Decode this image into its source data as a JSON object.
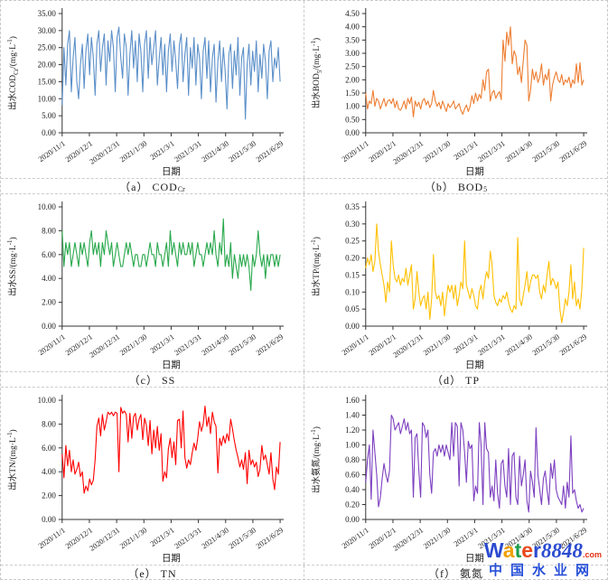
{
  "watermark": {
    "letters": [
      {
        "ch": "W",
        "color": "#2B4BD0"
      },
      {
        "ch": "a",
        "color": "#F0A000"
      },
      {
        "ch": "t",
        "color": "#1E9E4C"
      },
      {
        "ch": "e",
        "color": "#E8491D"
      },
      {
        "ch": "r",
        "color": "#2B4BD0"
      }
    ],
    "suffix": "8848",
    "suffix_color": "#2B4BD0",
    "dot_com": ".com",
    "dot_com_color": "#E53012",
    "line2": "中国水业网",
    "line2_color": "#2750D8"
  },
  "chart_data": [
    {
      "id": "a",
      "type": "line",
      "caption": {
        "pre": "（a） COD",
        "sub": "Cr"
      },
      "ylabel": {
        "pre": "出水COD",
        "sub": "Cr",
        "post": "/(mg·L",
        "sup": "-1",
        "end": ")"
      },
      "xlabel": "日期",
      "color": "#5B8FC9",
      "ymin": 0,
      "ymax": 35,
      "ystep": 5,
      "xticks": [
        "2020/11/1",
        "2020/12/1",
        "2020/12/31",
        "2021/1/30",
        "2021/3/1",
        "2021/3/31",
        "2021/4/30",
        "2021/5/30",
        "2021/6/29"
      ],
      "values": [
        8,
        25,
        14,
        26,
        30,
        12,
        22,
        28,
        15,
        10,
        20,
        26,
        13,
        24,
        29,
        17,
        28,
        22,
        11,
        26,
        30,
        18,
        25,
        29,
        14,
        27,
        21,
        30,
        25,
        12,
        28,
        31,
        22,
        16,
        29,
        25,
        11,
        23,
        30,
        19,
        27,
        15,
        29,
        24,
        12,
        26,
        30,
        16,
        28,
        20,
        25,
        30,
        14,
        22,
        28,
        17,
        26,
        12,
        24,
        29,
        18,
        27,
        21,
        13,
        26,
        29,
        15,
        23,
        28,
        11,
        25,
        19,
        28,
        14,
        26,
        22,
        10,
        24,
        28,
        16,
        27,
        12,
        22,
        26,
        9,
        21,
        27,
        15,
        25,
        18,
        7,
        23,
        26,
        13,
        24,
        17,
        28,
        11,
        22,
        25,
        4,
        20,
        26,
        14,
        24,
        18,
        27,
        12,
        23,
        16,
        26,
        21,
        10,
        24,
        27,
        15,
        22,
        19,
        25,
        15
      ]
    },
    {
      "id": "b",
      "type": "line",
      "caption": {
        "pre": "（b） BOD",
        "sub": "5"
      },
      "ylabel": {
        "pre": "出水BOD",
        "sub": "5",
        "post": "/(mg·L",
        "sup": "-1",
        "end": ")"
      },
      "xlabel": "日期",
      "color": "#ED7D31",
      "ymin": 0,
      "ymax": 4.5,
      "ystep": 0.5,
      "xticks": [
        "2020/11/1",
        "2020/12/1",
        "2020/12/31",
        "2021/1/30",
        "2021/3/1",
        "2021/3/31",
        "2021/4/30",
        "2021/5/30",
        "2021/6/29"
      ],
      "values": [
        1.5,
        0.9,
        1.2,
        1.1,
        1.6,
        1.0,
        1.3,
        1.2,
        0.9,
        1.1,
        1.3,
        1.0,
        1.2,
        1.25,
        1.1,
        1.3,
        0.95,
        1.2,
        0.9,
        0.85,
        1.0,
        1.2,
        0.9,
        1.3,
        1.1,
        1.35,
        0.6,
        1.2,
        1.0,
        1.15,
        0.9,
        1.2,
        1.3,
        1.05,
        1.2,
        0.95,
        1.1,
        1.6,
        1.2,
        1.0,
        1.15,
        0.9,
        1.2,
        1.0,
        0.8,
        1.1,
        0.95,
        1.05,
        1.2,
        0.9,
        1.0,
        1.1,
        0.85,
        0.7,
        0.9,
        1.05,
        0.8,
        1.0,
        1.4,
        1.1,
        1.5,
        1.2,
        1.45,
        1.3,
        2.0,
        1.6,
        2.3,
        2.4,
        1.2,
        1.5,
        1.6,
        1.3,
        1.45,
        1.55,
        1.25,
        3.5,
        2.7,
        3.8,
        3.3,
        4.0,
        2.6,
        3.1,
        2.9,
        2.2,
        2.5,
        1.9,
        2.7,
        3.5,
        3.3,
        1.2,
        1.6,
        2.4,
        2.0,
        2.3,
        1.9,
        2.1,
        2.6,
        1.8,
        2.2,
        2.0,
        2.4,
        1.2,
        1.8,
        2.1,
        2.3,
        2.0,
        1.9,
        2.2,
        1.8,
        2.0,
        1.9,
        2.1,
        1.7,
        2.0,
        1.85,
        2.6,
        1.9,
        2.65,
        1.8,
        2.0
      ]
    },
    {
      "id": "c",
      "type": "line",
      "caption": {
        "pre": "（c） SS",
        "sub": ""
      },
      "ylabel": {
        "pre": "出水SS",
        "sub": "",
        "post": "/(mg·L",
        "sup": "-1",
        "end": ")"
      },
      "xlabel": "日期",
      "color": "#28A84C",
      "ymin": 0,
      "ymax": 10,
      "ystep": 2,
      "xticks": [
        "2020/11/1",
        "2020/12/1",
        "2020/12/31",
        "2021/1/30",
        "2021/3/1",
        "2021/3/31",
        "2021/4/30",
        "2021/5/30",
        "2021/6/29"
      ],
      "values": [
        8,
        5,
        7,
        6,
        7,
        5,
        6,
        7,
        6,
        5,
        7,
        6,
        7,
        6,
        5,
        7,
        8,
        6,
        7,
        6,
        7,
        5,
        7,
        6,
        8,
        7,
        6,
        7,
        5,
        6,
        7,
        6,
        5,
        5,
        6,
        7,
        6,
        7,
        6,
        5,
        6,
        6,
        5,
        5,
        6,
        6,
        5,
        6,
        7,
        6,
        6,
        5,
        7,
        6,
        6,
        5,
        6,
        7,
        5,
        8,
        6,
        7,
        6,
        5,
        7,
        6,
        7,
        6,
        6,
        7,
        6,
        7,
        5,
        6,
        7,
        6,
        6,
        5,
        6,
        7,
        6,
        7,
        6,
        8,
        6,
        5,
        7,
        6,
        9,
        5,
        6,
        5,
        7,
        4,
        6,
        5,
        4,
        6,
        5,
        6,
        5,
        6,
        5,
        3,
        6,
        5,
        6,
        8,
        6,
        5,
        6,
        4,
        6,
        5,
        6,
        6,
        5,
        6,
        5,
        6
      ]
    },
    {
      "id": "d",
      "type": "line",
      "caption": {
        "pre": "（d） TP",
        "sub": ""
      },
      "ylabel": {
        "pre": "出水TP",
        "sub": "",
        "post": "/(mg·L",
        "sup": "-1",
        "end": ")"
      },
      "xlabel": "日期",
      "color": "#FFC000",
      "ymin": 0,
      "ymax": 0.35,
      "ystep": 0.05,
      "xticks": [
        "2020/11/1",
        "2020/12/1",
        "2020/12/31",
        "2021/1/30",
        "2021/3/1",
        "2021/3/31",
        "2021/4/30",
        "2021/5/30",
        "2021/6/29"
      ],
      "values": [
        0.17,
        0.2,
        0.18,
        0.21,
        0.16,
        0.19,
        0.3,
        0.22,
        0.18,
        0.15,
        0.12,
        0.07,
        0.13,
        0.1,
        0.25,
        0.18,
        0.14,
        0.13,
        0.15,
        0.12,
        0.14,
        0.13,
        0.17,
        0.12,
        0.15,
        0.18,
        0.05,
        0.08,
        0.16,
        0.1,
        0.06,
        0.08,
        0.09,
        0.05,
        0.1,
        0.02,
        0.08,
        0.21,
        0.1,
        0.08,
        0.09,
        0.06,
        0.1,
        0.03,
        0.08,
        0.12,
        0.1,
        0.12,
        0.08,
        0.12,
        0.06,
        0.09,
        0.13,
        0.11,
        0.25,
        0.12,
        0.1,
        0.08,
        0.11,
        0.09,
        0.06,
        0.05,
        0.1,
        0.12,
        0.08,
        0.13,
        0.16,
        0.14,
        0.22,
        0.18,
        0.09,
        0.07,
        0.06,
        0.08,
        0.07,
        0.09,
        0.08,
        0.1,
        0.07,
        0.05,
        0.04,
        0.06,
        0.05,
        0.26,
        0.08,
        0.06,
        0.09,
        0.12,
        0.16,
        0.1,
        0.13,
        0.15,
        0.15,
        0.14,
        0.15,
        0.1,
        0.08,
        0.12,
        0.1,
        0.15,
        0.19,
        0.12,
        0.14,
        0.13,
        0.11,
        0.13,
        0.05,
        0.01,
        0.04,
        0.08,
        0.06,
        0.1,
        0.18,
        0.08,
        0.13,
        0.06,
        0.08,
        0.05,
        0.11,
        0.23
      ]
    },
    {
      "id": "e",
      "type": "line",
      "caption": {
        "pre": "（e） TN",
        "sub": ""
      },
      "ylabel": {
        "pre": "出水TN",
        "sub": "",
        "post": "/(mg·L",
        "sup": "-1",
        "end": ")"
      },
      "xlabel": "日期",
      "color": "#FF0000",
      "ymin": 0,
      "ymax": 10,
      "ystep": 2,
      "xticks": [
        "2020/11/1",
        "2020/12/1",
        "2020/12/31",
        "2021/1/30",
        "2021/3/1",
        "2021/3/31",
        "2021/4/30",
        "2021/5/30",
        "2021/6/29"
      ],
      "values": [
        5.5,
        3.5,
        6.2,
        4.5,
        5.8,
        4.0,
        5.0,
        3.8,
        4.2,
        4.8,
        3.6,
        4.0,
        2.2,
        2.8,
        2.4,
        3.4,
        2.9,
        3.3,
        5.0,
        7.8,
        8.5,
        7.0,
        8.8,
        7.5,
        8.2,
        9.0,
        8.8,
        9.0,
        8.7,
        9.0,
        8.9,
        4.0,
        9.4,
        8.9,
        9.1,
        8.8,
        6.5,
        8.9,
        6.8,
        8.6,
        8.9,
        7.5,
        8.4,
        8.8,
        6.7,
        8.5,
        7.9,
        6.2,
        8.3,
        5.5,
        7.5,
        6.0,
        7.8,
        5.8,
        7.2,
        3.2,
        4.0,
        3.5,
        5.9,
        6.8,
        5.2,
        6.5,
        4.6,
        8.3,
        8.4,
        6.0,
        9.1,
        5.2,
        4.3,
        5.0,
        4.6,
        5.6,
        6.4,
        5.8,
        6.8,
        8.2,
        7.4,
        8.0,
        9.5,
        7.8,
        8.6,
        7.2,
        9.0,
        8.2,
        7.8,
        3.9,
        6.8,
        6.2,
        7.0,
        6.4,
        7.2,
        6.6,
        8.4,
        7.6,
        6.6,
        5.8,
        5.2,
        4.4,
        5.0,
        4.2,
        5.6,
        3.0,
        5.8,
        4.6,
        5.0,
        4.4,
        4.8,
        3.6,
        4.2,
        6.2,
        5.0,
        5.4,
        4.6,
        3.8,
        5.6,
        3.4,
        2.5,
        4.4,
        3.8,
        6.5
      ]
    },
    {
      "id": "f",
      "type": "line",
      "caption": {
        "pre": "（f） 氨氮",
        "sub": ""
      },
      "ylabel": {
        "pre": "出水氨氮",
        "sub": "",
        "post": "/(mg·L",
        "sup": "-1",
        "end": ")"
      },
      "xlabel": "日期",
      "color": "#7C3FC0",
      "ymin": 0,
      "ymax": 1.6,
      "ystep": 0.2,
      "xticks": [
        "2020/11/1",
        "2020/12/1",
        "2020/12/31",
        "2021/1/30",
        "2021/3/1",
        "2021/3/31",
        "2021/4/30",
        "2021/5/30",
        "2021/6/29"
      ],
      "values": [
        0.5,
        0.8,
        1.0,
        0.27,
        1.2,
        0.9,
        0.6,
        0.17,
        0.3,
        0.55,
        0.75,
        0.6,
        0.5,
        0.65,
        1.4,
        1.35,
        1.2,
        1.25,
        1.3,
        1.15,
        1.25,
        1.35,
        1.2,
        1.3,
        1.15,
        1.2,
        0.3,
        1.1,
        1.15,
        0.65,
        0.3,
        1.3,
        1.25,
        1.1,
        1.2,
        0.6,
        0.35,
        0.9,
        0.95,
        0.85,
        1.0,
        0.9,
        1.0,
        0.85,
        1.0,
        0.9,
        0.8,
        1.3,
        0.85,
        1.3,
        1.25,
        0.45,
        1.3,
        1.2,
        0.9,
        0.5,
        1.05,
        0.95,
        1.0,
        0.25,
        0.45,
        0.35,
        1.3,
        1.0,
        0.2,
        1.3,
        0.95,
        0.9,
        0.3,
        0.45,
        0.25,
        0.8,
        0.35,
        0.15,
        0.75,
        0.8,
        0.45,
        0.3,
        0.95,
        0.2,
        0.85,
        0.9,
        0.3,
        0.2,
        0.85,
        0.45,
        0.6,
        0.8,
        0.25,
        0.1,
        0.65,
        0.5,
        0.3,
        1.23,
        0.6,
        0.4,
        0.2,
        0.55,
        0.65,
        0.4,
        0.2,
        0.75,
        0.55,
        0.8,
        0.4,
        0.3,
        0.25,
        0.2,
        0.45,
        0.15,
        0.5,
        0.3,
        1.12,
        0.35,
        0.4,
        0.25,
        0.15,
        0.2,
        0.1,
        0.15
      ]
    }
  ]
}
